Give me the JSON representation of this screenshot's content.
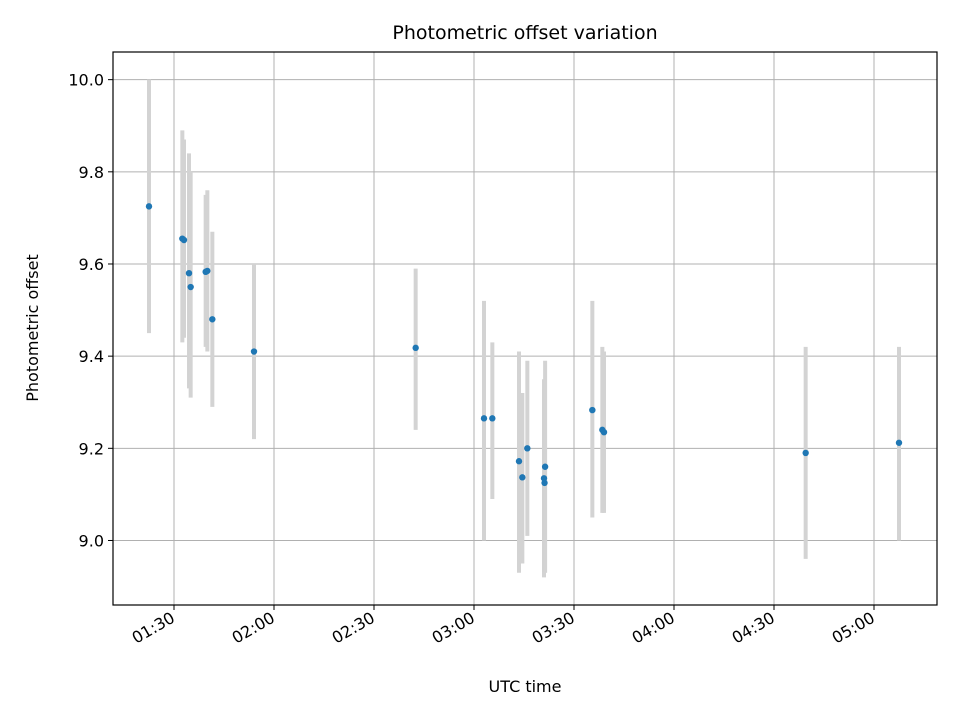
{
  "chart_data": {
    "type": "scatter",
    "title": "Photometric offset variation",
    "xlabel": "UTC time",
    "ylabel": "Photometric offset",
    "x_ticks": [
      "01:30",
      "02:00",
      "02:30",
      "03:00",
      "03:30",
      "04:00",
      "04:30",
      "05:00"
    ],
    "y_ticks": [
      "9.0",
      "9.2",
      "9.4",
      "9.6",
      "9.8",
      "10.0"
    ],
    "xlim": [
      "01:11:42",
      "05:18:54"
    ],
    "ylim": [
      8.86,
      10.06
    ],
    "grid": true,
    "legend": "none",
    "marker_color": "#1f77b4",
    "errorbar_color": "#d3d3d3",
    "points": [
      {
        "t": "01:22:30",
        "y": 9.725,
        "lo": 9.45,
        "hi": 10.0
      },
      {
        "t": "01:32:30",
        "y": 9.655,
        "lo": 9.43,
        "hi": 9.89
      },
      {
        "t": "01:33:00",
        "y": 9.652,
        "lo": 9.44,
        "hi": 9.87
      },
      {
        "t": "01:34:30",
        "y": 9.58,
        "lo": 9.33,
        "hi": 9.84
      },
      {
        "t": "01:35:00",
        "y": 9.55,
        "lo": 9.31,
        "hi": 9.8
      },
      {
        "t": "01:39:30",
        "y": 9.583,
        "lo": 9.42,
        "hi": 9.75
      },
      {
        "t": "01:40:00",
        "y": 9.585,
        "lo": 9.41,
        "hi": 9.76
      },
      {
        "t": "01:41:30",
        "y": 9.48,
        "lo": 9.29,
        "hi": 9.67
      },
      {
        "t": "01:54:00",
        "y": 9.41,
        "lo": 9.22,
        "hi": 9.6
      },
      {
        "t": "02:42:30",
        "y": 9.418,
        "lo": 9.24,
        "hi": 9.59
      },
      {
        "t": "03:03:00",
        "y": 9.265,
        "lo": 9.0,
        "hi": 9.52
      },
      {
        "t": "03:05:30",
        "y": 9.265,
        "lo": 9.09,
        "hi": 9.43
      },
      {
        "t": "03:13:30",
        "y": 9.172,
        "lo": 8.93,
        "hi": 9.41
      },
      {
        "t": "03:14:30",
        "y": 9.137,
        "lo": 8.95,
        "hi": 9.32
      },
      {
        "t": "03:16:00",
        "y": 9.2,
        "lo": 9.01,
        "hi": 9.39
      },
      {
        "t": "03:21:00",
        "y": 9.135,
        "lo": 8.92,
        "hi": 9.35
      },
      {
        "t": "03:21:10",
        "y": 9.125,
        "lo": 8.93,
        "hi": 9.33
      },
      {
        "t": "03:21:20",
        "y": 9.16,
        "lo": 8.93,
        "hi": 9.39
      },
      {
        "t": "03:35:30",
        "y": 9.283,
        "lo": 9.05,
        "hi": 9.52
      },
      {
        "t": "03:38:30",
        "y": 9.24,
        "lo": 9.06,
        "hi": 9.42
      },
      {
        "t": "03:39:00",
        "y": 9.235,
        "lo": 9.06,
        "hi": 9.41
      },
      {
        "t": "04:39:30",
        "y": 9.19,
        "lo": 8.96,
        "hi": 9.42
      },
      {
        "t": "05:07:30",
        "y": 9.212,
        "lo": 9.0,
        "hi": 9.42
      }
    ]
  }
}
